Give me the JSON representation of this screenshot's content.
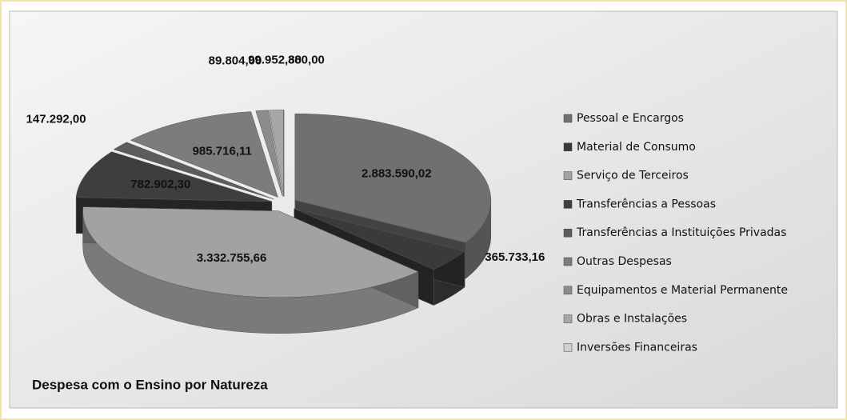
{
  "chart_data": {
    "type": "pie",
    "title": "Despesa com o Ensino por Natureza",
    "categories": [
      "Pessoal e Encargos",
      "Material de Consumo",
      "Serviço de Terceiros",
      "Transferências a Pessoas",
      "Transferências a Instituições Privadas",
      "Outras Despesas",
      "Equipamentos e Material Permanente",
      "Obras e Instalações",
      "Inversões Financeiras"
    ],
    "values": [
      2883590.02,
      365733.16,
      3332755.66,
      782902.3,
      147292.0,
      985716.11,
      89804.0,
      99952.8,
      380.0
    ],
    "value_labels": [
      "2.883.590,02",
      "365.733,16",
      "3.332.755,66",
      "782.902,30",
      "147.292,00",
      "985.716,11",
      "89.804,00",
      "99.952,80",
      "380,00"
    ],
    "colors": [
      "#707070",
      "#3a3a3a",
      "#a2a2a2",
      "#3e3e3e",
      "#5c5c5c",
      "#7c7c7c",
      "#8c8c8c",
      "#a6a6a6",
      "#cfcfcf"
    ],
    "legend": "right"
  }
}
